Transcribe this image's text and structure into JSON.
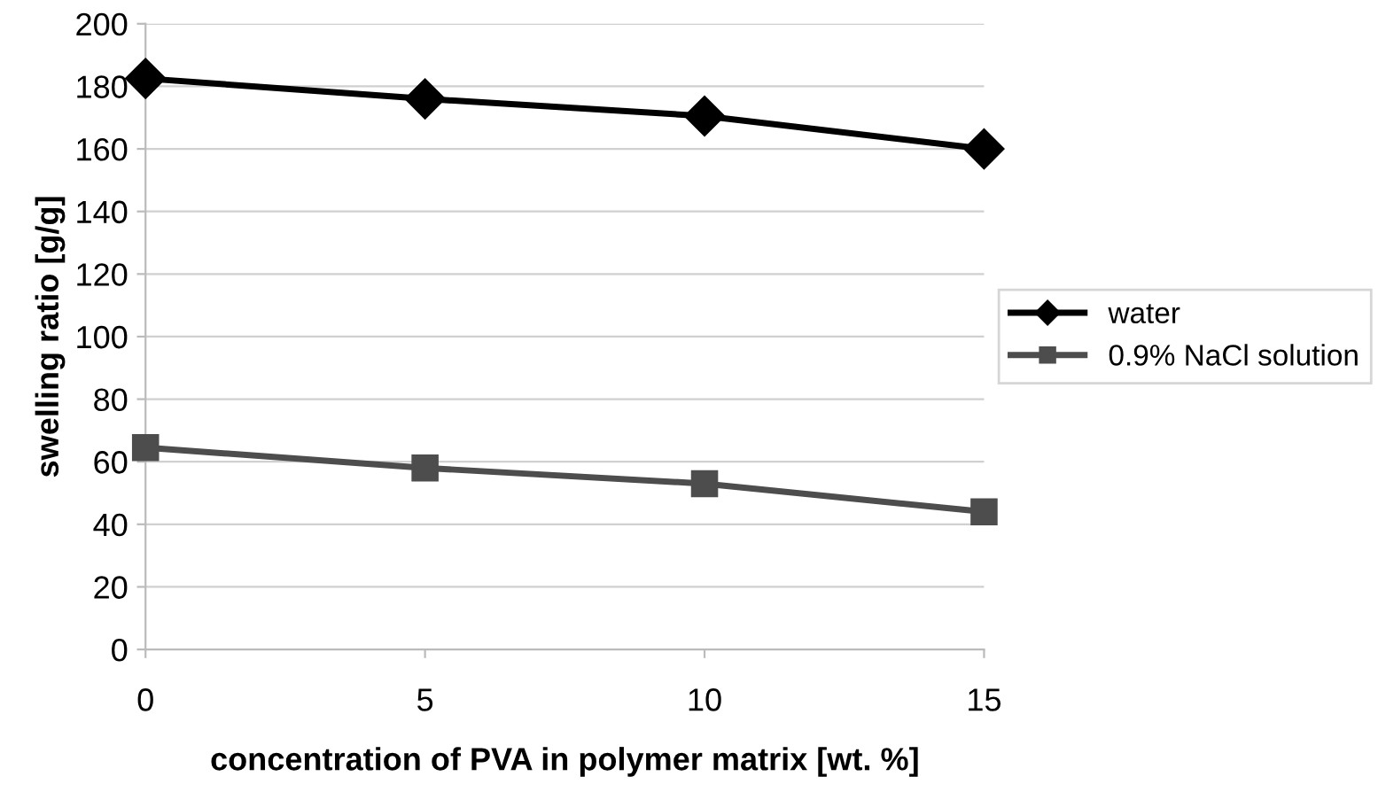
{
  "chart_data": {
    "type": "line",
    "xlabel": "concentration of PVA in polymer matrix [wt. %]",
    "ylabel": "swelling ratio [g/g]",
    "x": [
      0,
      5,
      10,
      15
    ],
    "series": [
      {
        "name": "water",
        "color": "#000000",
        "marker": "diamond",
        "values": [
          182.5,
          176,
          170.5,
          160
        ]
      },
      {
        "name": "0.9% NaCl solution",
        "color": "#4d4d4d",
        "marker": "square",
        "values": [
          64.5,
          58,
          53,
          44
        ]
      }
    ],
    "xlim": [
      0,
      15
    ],
    "xticks": [
      0,
      5,
      10,
      15
    ],
    "ylim": [
      0,
      200
    ],
    "yticks": [
      0,
      20,
      40,
      60,
      80,
      100,
      120,
      140,
      160,
      180,
      200
    ],
    "grid": "y",
    "legend": "right",
    "line_style": "solid"
  }
}
